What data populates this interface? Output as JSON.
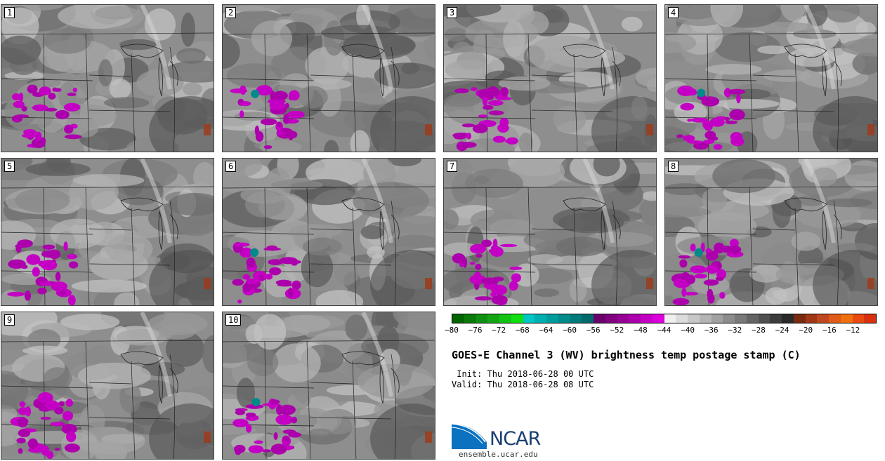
{
  "panels": [
    {
      "label": "1"
    },
    {
      "label": "2"
    },
    {
      "label": "3"
    },
    {
      "label": "4"
    },
    {
      "label": "5"
    },
    {
      "label": "6"
    },
    {
      "label": "7"
    },
    {
      "label": "8"
    },
    {
      "label": "9"
    },
    {
      "label": "10"
    }
  ],
  "colorbar": {
    "tick_labels": [
      "−80",
      "−76",
      "−72",
      "−68",
      "−64",
      "−60",
      "−56",
      "−52",
      "−48",
      "−44",
      "−40",
      "−36",
      "−32",
      "−28",
      "−24",
      "−20",
      "−16",
      "−12"
    ],
    "colors": [
      "#006400",
      "#0a7a0a",
      "#118f11",
      "#14a514",
      "#12c412",
      "#10e010",
      "#00c6c6",
      "#00b0b0",
      "#009c9c",
      "#008a8a",
      "#007a7a",
      "#006a6a",
      "#6a006a",
      "#800080",
      "#960096",
      "#ad00ad",
      "#c400c4",
      "#dc00dc",
      "#f0f0f0",
      "#dcdcdc",
      "#c8c8c8",
      "#b4b4b4",
      "#a0a0a0",
      "#8c8c8c",
      "#787878",
      "#646464",
      "#505050",
      "#3c3c3c",
      "#2a2a2a",
      "#7a2a10",
      "#a03818",
      "#c04820",
      "#e05a18",
      "#f07010",
      "#e84a10",
      "#d83010"
    ]
  },
  "title": "GOES-E Channel 3 (WV) brightness temp postage stamp (C)",
  "init": " Init: Thu 2018-06-28 00 UTC",
  "valid": "Valid: Thu 2018-06-28 08 UTC",
  "logo": {
    "text": "NCAR",
    "url": "ensemble.ucar.edu"
  }
}
